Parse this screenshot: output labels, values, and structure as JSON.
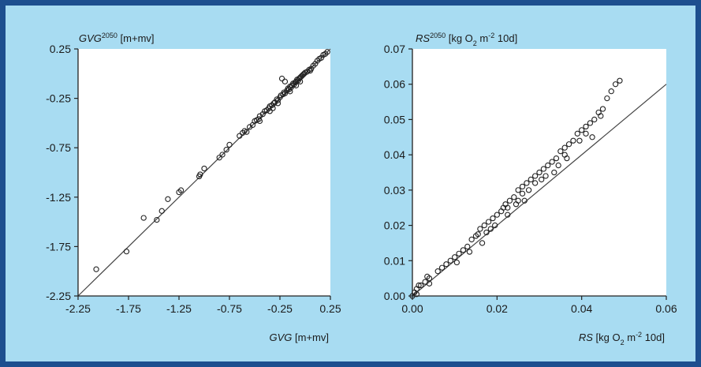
{
  "colors": {
    "frame": "#1d4f8f",
    "panel": "#a8dcf2",
    "plot_bg": "#ffffff",
    "marker": "#222222",
    "line": "#444444"
  },
  "chart_data": [
    {
      "type": "scatter",
      "title": {
        "var": "GVG",
        "sup": "2050",
        "unit": " [m+mv]"
      },
      "xlabel": {
        "var": "GVG",
        "unit": " [m+mv]"
      },
      "xlim": [
        -2.25,
        0.25
      ],
      "ylim": [
        -2.25,
        0.25
      ],
      "xticks": [
        "-2.25",
        "-1.75",
        "-1.25",
        "-0.75",
        "-0.25",
        "0.25"
      ],
      "yticks": [
        "0.25",
        "-0.25",
        "-0.75",
        "-1.25",
        "-1.75",
        "-2.25"
      ],
      "xtick_values": [
        -2.25,
        -1.75,
        -1.25,
        -0.75,
        -0.25,
        0.25
      ],
      "ytick_values": [
        0.25,
        -0.25,
        -0.75,
        -1.25,
        -1.75,
        -2.25
      ],
      "reference_line": {
        "from": [
          -2.25,
          -2.25
        ],
        "to": [
          0.25,
          0.25
        ]
      },
      "points": [
        [
          -2.07,
          -1.98
        ],
        [
          -1.77,
          -1.8
        ],
        [
          -1.6,
          -1.46
        ],
        [
          -1.47,
          -1.48
        ],
        [
          -1.42,
          -1.39
        ],
        [
          -1.36,
          -1.27
        ],
        [
          -1.23,
          -1.18
        ],
        [
          -1.25,
          -1.2
        ],
        [
          -1.05,
          -1.04
        ],
        [
          -1.04,
          -1.02
        ],
        [
          -1.0,
          -0.96
        ],
        [
          -0.85,
          -0.85
        ],
        [
          -0.82,
          -0.82
        ],
        [
          -0.78,
          -0.77
        ],
        [
          -0.75,
          -0.72
        ],
        [
          -0.65,
          -0.63
        ],
        [
          -0.62,
          -0.6
        ],
        [
          -0.6,
          -0.58
        ],
        [
          -0.58,
          -0.59
        ],
        [
          -0.55,
          -0.54
        ],
        [
          -0.52,
          -0.52
        ],
        [
          -0.5,
          -0.48
        ],
        [
          -0.48,
          -0.47
        ],
        [
          -0.46,
          -0.46
        ],
        [
          -0.45,
          -0.43
        ],
        [
          -0.42,
          -0.41
        ],
        [
          -0.4,
          -0.38
        ],
        [
          -0.38,
          -0.37
        ],
        [
          -0.36,
          -0.35
        ],
        [
          -0.35,
          -0.33
        ],
        [
          -0.33,
          -0.32
        ],
        [
          -0.31,
          -0.3
        ],
        [
          -0.3,
          -0.29
        ],
        [
          -0.28,
          -0.26
        ],
        [
          -0.27,
          -0.27
        ],
        [
          -0.25,
          -0.24
        ],
        [
          -0.24,
          -0.22
        ],
        [
          -0.22,
          -0.21
        ],
        [
          -0.21,
          -0.19
        ],
        [
          -0.2,
          -0.2
        ],
        [
          -0.18,
          -0.17
        ],
        [
          -0.17,
          -0.15
        ],
        [
          -0.16,
          -0.16
        ],
        [
          -0.15,
          -0.13
        ],
        [
          -0.14,
          -0.14
        ],
        [
          -0.13,
          -0.12
        ],
        [
          -0.12,
          -0.1
        ],
        [
          -0.11,
          -0.11
        ],
        [
          -0.1,
          -0.09
        ],
        [
          -0.09,
          -0.08
        ],
        [
          -0.08,
          -0.06
        ],
        [
          -0.07,
          -0.07
        ],
        [
          -0.06,
          -0.05
        ],
        [
          -0.05,
          -0.04
        ],
        [
          -0.04,
          -0.03
        ],
        [
          -0.03,
          -0.02
        ],
        [
          -0.02,
          -0.01
        ],
        [
          -0.01,
          0.0
        ],
        [
          0.0,
          0.01
        ],
        [
          0.02,
          0.02
        ],
        [
          0.04,
          0.04
        ],
        [
          0.06,
          0.05
        ],
        [
          0.08,
          0.08
        ],
        [
          0.1,
          0.1
        ],
        [
          0.12,
          0.13
        ],
        [
          0.14,
          0.15
        ],
        [
          0.16,
          0.16
        ],
        [
          0.18,
          0.19
        ],
        [
          0.2,
          0.2
        ],
        [
          0.22,
          0.22
        ],
        [
          -0.23,
          -0.05
        ],
        [
          -0.2,
          -0.08
        ],
        [
          -0.45,
          -0.48
        ],
        [
          -0.32,
          -0.35
        ],
        [
          -0.15,
          -0.18
        ],
        [
          -0.05,
          -0.08
        ],
        [
          0.05,
          0.03
        ],
        [
          -0.35,
          -0.38
        ],
        [
          -0.27,
          -0.3
        ],
        [
          -0.09,
          -0.12
        ]
      ]
    },
    {
      "type": "scatter",
      "title": {
        "var": "RS",
        "sup": "2050",
        "unit": " [kg O",
        "unit_sub": "2",
        "unit_mid": " m",
        "unit_sup": "-2",
        "unit_end": " 10d]"
      },
      "xlabel": {
        "var": "RS",
        "unit": " [kg O",
        "unit_sub": "2",
        "unit_mid": " m",
        "unit_sup": "-2",
        "unit_end": " 10d]"
      },
      "xlim": [
        0,
        0.06
      ],
      "ylim": [
        0,
        0.07
      ],
      "xticks": [
        "0.00",
        "0.02",
        "0.04",
        "0.06"
      ],
      "yticks": [
        "0.07",
        "0.06",
        "0.05",
        "0.04",
        "0.03",
        "0.02",
        "0.01",
        "0.00"
      ],
      "xtick_values": [
        0,
        0.02,
        0.04,
        0.06
      ],
      "ytick_values": [
        0.07,
        0.06,
        0.05,
        0.04,
        0.03,
        0.02,
        0.01,
        0.0
      ],
      "reference_line": {
        "from": [
          0,
          0
        ],
        "to": [
          0.06,
          0.06
        ]
      },
      "points": [
        [
          0.0,
          0.0
        ],
        [
          0.0005,
          0.001
        ],
        [
          0.001,
          0.002
        ],
        [
          0.001,
          0.0005
        ],
        [
          0.0015,
          0.003
        ],
        [
          0.002,
          0.003
        ],
        [
          0.003,
          0.004
        ],
        [
          0.0035,
          0.0055
        ],
        [
          0.004,
          0.005
        ],
        [
          0.004,
          0.0035
        ],
        [
          0.006,
          0.007
        ],
        [
          0.007,
          0.008
        ],
        [
          0.008,
          0.009
        ],
        [
          0.009,
          0.01
        ],
        [
          0.01,
          0.011
        ],
        [
          0.0105,
          0.0095
        ],
        [
          0.011,
          0.012
        ],
        [
          0.012,
          0.013
        ],
        [
          0.013,
          0.014
        ],
        [
          0.0135,
          0.0125
        ],
        [
          0.014,
          0.016
        ],
        [
          0.015,
          0.017
        ],
        [
          0.016,
          0.019
        ],
        [
          0.017,
          0.02
        ],
        [
          0.0175,
          0.018
        ],
        [
          0.018,
          0.021
        ],
        [
          0.019,
          0.022
        ],
        [
          0.0195,
          0.02
        ],
        [
          0.02,
          0.023
        ],
        [
          0.021,
          0.024
        ],
        [
          0.0215,
          0.025
        ],
        [
          0.022,
          0.026
        ],
        [
          0.0225,
          0.025
        ],
        [
          0.023,
          0.027
        ],
        [
          0.024,
          0.028
        ],
        [
          0.0245,
          0.026
        ],
        [
          0.025,
          0.03
        ],
        [
          0.026,
          0.029
        ],
        [
          0.026,
          0.031
        ],
        [
          0.027,
          0.032
        ],
        [
          0.0275,
          0.03
        ],
        [
          0.028,
          0.033
        ],
        [
          0.029,
          0.032
        ],
        [
          0.029,
          0.034
        ],
        [
          0.03,
          0.035
        ],
        [
          0.031,
          0.036
        ],
        [
          0.0315,
          0.034
        ],
        [
          0.032,
          0.037
        ],
        [
          0.033,
          0.038
        ],
        [
          0.034,
          0.039
        ],
        [
          0.0345,
          0.037
        ],
        [
          0.035,
          0.041
        ],
        [
          0.036,
          0.042
        ],
        [
          0.036,
          0.04
        ],
        [
          0.037,
          0.043
        ],
        [
          0.038,
          0.044
        ],
        [
          0.039,
          0.046
        ],
        [
          0.04,
          0.047
        ],
        [
          0.041,
          0.048
        ],
        [
          0.041,
          0.046
        ],
        [
          0.042,
          0.049
        ],
        [
          0.043,
          0.05
        ],
        [
          0.044,
          0.052
        ],
        [
          0.045,
          0.053
        ],
        [
          0.046,
          0.056
        ],
        [
          0.047,
          0.058
        ],
        [
          0.048,
          0.06
        ],
        [
          0.049,
          0.061
        ],
        [
          0.0165,
          0.015
        ],
        [
          0.0155,
          0.0175
        ],
        [
          0.0185,
          0.019
        ],
        [
          0.0225,
          0.023
        ],
        [
          0.0265,
          0.027
        ],
        [
          0.0305,
          0.033
        ],
        [
          0.0335,
          0.035
        ],
        [
          0.0365,
          0.039
        ],
        [
          0.0395,
          0.044
        ],
        [
          0.0425,
          0.045
        ],
        [
          0.0445,
          0.051
        ],
        [
          0.025,
          0.027
        ]
      ]
    }
  ]
}
